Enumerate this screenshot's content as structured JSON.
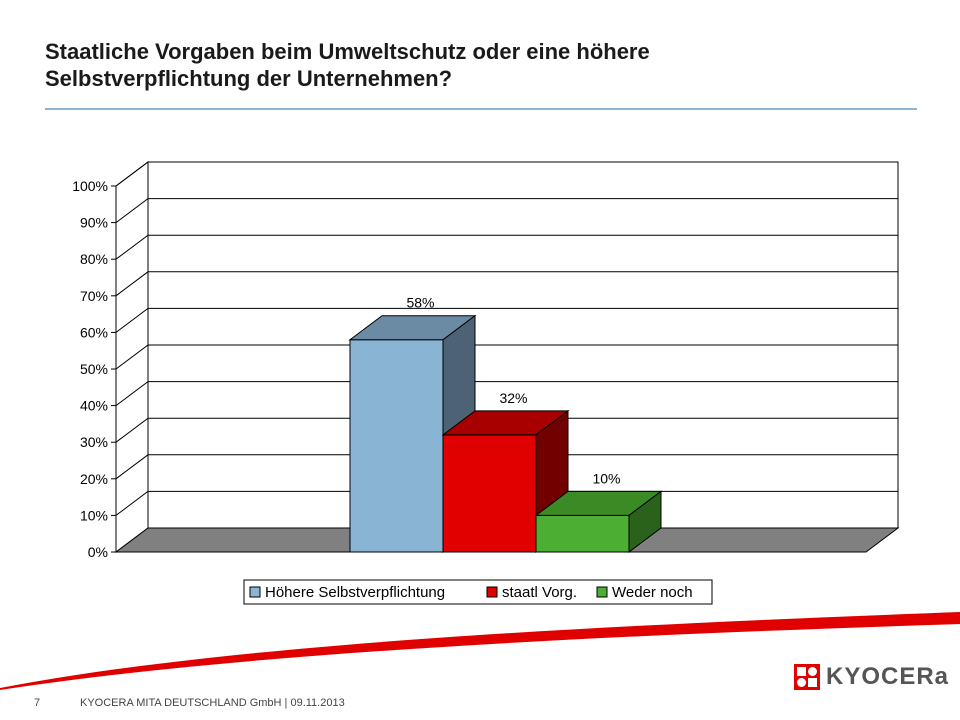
{
  "slide": {
    "title_line1": "Staatliche Vorgaben beim Umweltschutz oder eine höhere",
    "title_line2": "Selbstverpflichtung der Unternehmen?"
  },
  "chart_data": {
    "type": "bar",
    "style": "3d-column",
    "categories": [
      "Höhere Selbstverpflichtung",
      "staatl Vorg.",
      "Weder noch"
    ],
    "series": [
      {
        "name": "Höhere Selbstverpflichtung",
        "value": 58,
        "label": "58%"
      },
      {
        "name": "staatl Vorg.",
        "value": 32,
        "label": "32%"
      },
      {
        "name": "Weder noch",
        "value": 10,
        "label": "10%"
      }
    ],
    "y_ticks": [
      "0%",
      "10%",
      "20%",
      "30%",
      "40%",
      "50%",
      "60%",
      "70%",
      "80%",
      "90%",
      "100%"
    ],
    "ylim": [
      0,
      100
    ],
    "grid": true,
    "legend_position": "bottom",
    "colors": {
      "series": [
        {
          "front": "#8ab4d3",
          "top": "#6a8ba3",
          "side": "#4d6375"
        },
        {
          "front": "#e00000",
          "top": "#a80000",
          "side": "#720000"
        },
        {
          "front": "#4caf33",
          "top": "#3a8a26",
          "side": "#2a621b"
        }
      ],
      "floor": "#808080",
      "grid": "#000000",
      "title_rule": "#8fb4cf",
      "swoosh": "#e00000"
    }
  },
  "footer": {
    "page_number": "7",
    "company": "KYOCERA MITA DEUTSCHLAND  GmbH | 09.11.2013",
    "brand": "KYOCERa"
  }
}
